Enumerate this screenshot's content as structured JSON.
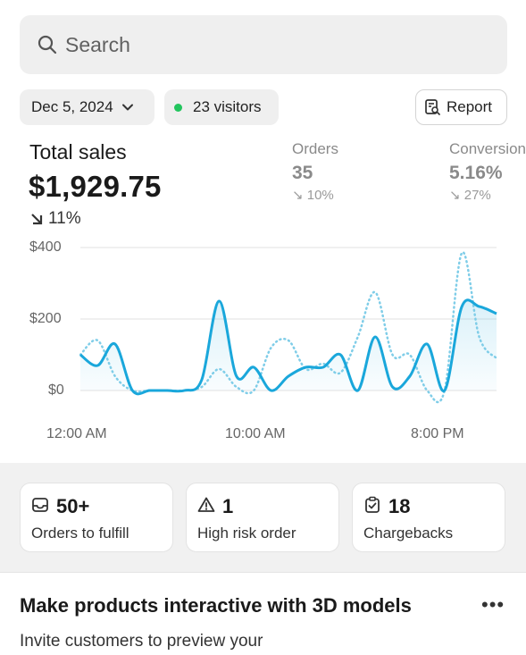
{
  "search": {
    "placeholder": "Search"
  },
  "filters": {
    "date": "Dec 5, 2024",
    "visitors": "23 visitors",
    "report": "Report"
  },
  "total_sales": {
    "label": "Total sales",
    "value": "$1,929.75",
    "delta": "11%"
  },
  "orders": {
    "label": "Orders",
    "value": "35",
    "delta": "10%"
  },
  "conversion": {
    "label": "Conversion",
    "value": "5.16%",
    "delta": "27%"
  },
  "colors": {
    "primary_line": "#1aa7db",
    "comparison_line": "#7fcde8",
    "status_green": "#22c55e"
  },
  "chart_data": {
    "type": "line",
    "x_tick_labels": [
      "12:00 AM",
      "10:00 AM",
      "8:00 PM"
    ],
    "y_tick_labels": [
      "$400",
      "$200",
      "$0"
    ],
    "ylim": [
      0,
      400
    ],
    "grid": true,
    "series": [
      {
        "values": [
          100,
          70,
          130,
          0,
          0,
          0,
          0,
          30,
          250,
          40,
          65,
          0,
          40,
          65,
          65,
          100,
          0,
          150,
          10,
          40,
          130,
          0,
          235,
          235,
          215
        ]
      },
      {
        "values": [
          100,
          140,
          40,
          0,
          0,
          0,
          0,
          10,
          60,
          10,
          0,
          120,
          140,
          60,
          75,
          50,
          150,
          275,
          100,
          100,
          0,
          0,
          385,
          150,
          90
        ]
      }
    ]
  },
  "cards": [
    {
      "num": "50+",
      "label": "Orders to fulfill"
    },
    {
      "num": "1",
      "label": "High risk order"
    },
    {
      "num": "18",
      "label": "Chargebacks"
    }
  ],
  "promo": {
    "title": "Make products interactive with 3D models",
    "text": "Invite customers to preview your",
    "more": "•••"
  }
}
